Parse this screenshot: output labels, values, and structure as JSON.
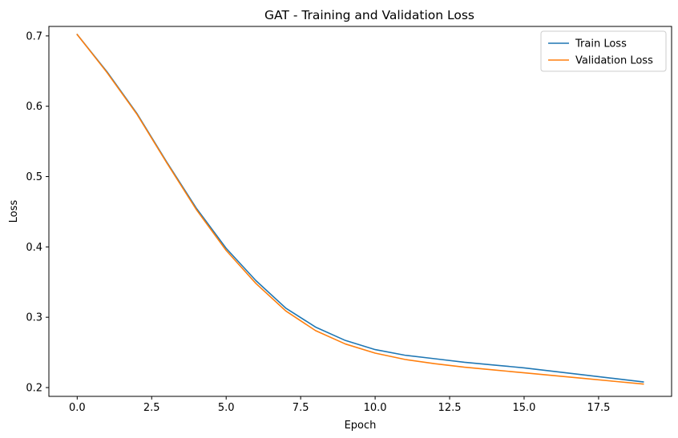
{
  "chart_data": {
    "type": "line",
    "title": "GAT - Training and Validation Loss",
    "xlabel": "Epoch",
    "ylabel": "Loss",
    "xlim": [
      -0.95,
      19.95
    ],
    "ylim": [
      0.1875,
      0.7135
    ],
    "xticks": [
      0.0,
      2.5,
      5.0,
      7.5,
      10.0,
      12.5,
      15.0,
      17.5
    ],
    "xtick_labels": [
      "0.0",
      "2.5",
      "5.0",
      "7.5",
      "10.0",
      "12.5",
      "15.0",
      "17.5"
    ],
    "yticks": [
      0.2,
      0.3,
      0.4,
      0.5,
      0.6,
      0.7
    ],
    "ytick_labels": [
      "0.2",
      "0.3",
      "0.4",
      "0.5",
      "0.6",
      "0.7"
    ],
    "grid": false,
    "legend_position": "top-right",
    "x": [
      0,
      1,
      2,
      3,
      4,
      5,
      6,
      7,
      8,
      9,
      10,
      11,
      12,
      13,
      14,
      15,
      16,
      17,
      18,
      19
    ],
    "series": [
      {
        "name": "Train Loss",
        "color": "#1f77b4",
        "values": [
          0.702,
          0.649,
          0.59,
          0.521,
          0.455,
          0.398,
          0.352,
          0.313,
          0.286,
          0.267,
          0.254,
          0.246,
          0.241,
          0.236,
          0.232,
          0.228,
          0.223,
          0.218,
          0.213,
          0.208
        ]
      },
      {
        "name": "Validation Loss",
        "color": "#ff7f0e",
        "values": [
          0.702,
          0.648,
          0.589,
          0.52,
          0.453,
          0.395,
          0.348,
          0.309,
          0.281,
          0.262,
          0.249,
          0.24,
          0.234,
          0.229,
          0.225,
          0.221,
          0.217,
          0.213,
          0.209,
          0.205
        ]
      }
    ]
  }
}
